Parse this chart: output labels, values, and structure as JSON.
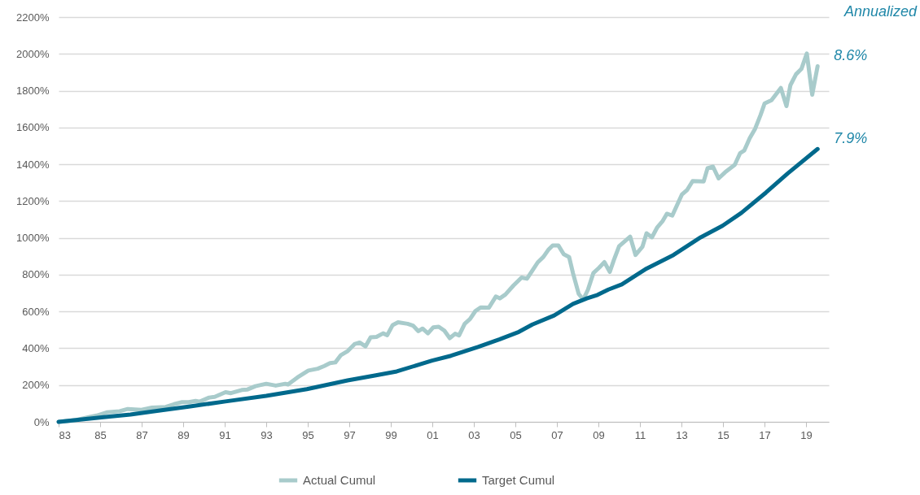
{
  "chart_data": {
    "type": "line",
    "series": [
      {
        "name": "Actual Cumul",
        "color": "#a8cbcb",
        "x": [
          1983.0,
          1983.85,
          1984.5,
          1984.83,
          1985.35,
          1985.94,
          1986.33,
          1986.99,
          1987.5,
          1988.16,
          1988.56,
          1988.95,
          1989.27,
          1989.6,
          1989.8,
          1990.25,
          1990.52,
          1991.04,
          1991.3,
          1991.82,
          1992.1,
          1992.48,
          1993.0,
          1993.46,
          1993.92,
          1994.05,
          1994.5,
          1995.03,
          1995.48,
          1995.8,
          1996.07,
          1996.33,
          1996.6,
          1996.93,
          1997.25,
          1997.5,
          1997.78,
          1998.03,
          1998.31,
          1998.63,
          1998.83,
          1999.09,
          1999.35,
          1999.81,
          2000.07,
          2000.33,
          2000.53,
          2000.79,
          2001.05,
          2001.31,
          2001.58,
          2001.84,
          2002.1,
          2002.29,
          2002.56,
          2002.82,
          2003.08,
          2003.34,
          2003.73,
          2004.06,
          2004.25,
          2004.52,
          2004.91,
          2005.3,
          2005.56,
          2005.82,
          2006.08,
          2006.35,
          2006.61,
          2006.8,
          2007.07,
          2007.33,
          2007.59,
          2007.78,
          2008.05,
          2008.27,
          2008.5,
          2008.76,
          2009.03,
          2009.29,
          2009.55,
          2009.75,
          2010.0,
          2010.53,
          2010.79,
          2011.12,
          2011.32,
          2011.58,
          2011.84,
          2012.1,
          2012.3,
          2012.56,
          2013.02,
          2013.28,
          2013.54,
          2014.07,
          2014.26,
          2014.52,
          2014.79,
          2015.11,
          2015.57,
          2015.83,
          2016.03,
          2016.29,
          2016.55,
          2016.81,
          2017.01,
          2017.34,
          2017.79,
          2018.06,
          2018.25,
          2018.52,
          2018.78,
          2019.04,
          2019.3,
          2019.56
        ],
        "values": [
          0,
          10,
          27,
          34,
          52,
          58,
          70,
          65,
          77,
          81,
          96,
          107,
          107,
          114,
          110,
          132,
          136,
          161,
          156,
          173,
          176,
          194,
          207,
          197,
          207,
          203,
          241,
          279,
          289,
          304,
          319,
          323,
          363,
          385,
          422,
          431,
          410,
          459,
          462,
          481,
          471,
          526,
          541,
          533,
          523,
          493,
          507,
          481,
          514,
          517,
          496,
          455,
          479,
          470,
          533,
          559,
          603,
          622,
          621,
          681,
          671,
          692,
          741,
          784,
          778,
          822,
          867,
          896,
          938,
          959,
          959,
          911,
          896,
          807,
          696,
          665,
          719,
          809,
          837,
          868,
          815,
          881,
          955,
          1007,
          907,
          951,
          1025,
          1003,
          1058,
          1092,
          1131,
          1121,
          1235,
          1261,
          1309,
          1306,
          1379,
          1387,
          1323,
          1357,
          1397,
          1461,
          1475,
          1542,
          1593,
          1667,
          1731,
          1748,
          1815,
          1716,
          1830,
          1889,
          1918,
          2002,
          1778,
          1933
        ]
      },
      {
        "name": "Target Cumul",
        "color": "#00698c",
        "x": [
          1983.0,
          1985.16,
          1986.46,
          1988.03,
          1989.34,
          1991.04,
          1993.0,
          1994.96,
          1996.92,
          1998.23,
          1999.29,
          2000.99,
          2001.9,
          2003.2,
          2004.25,
          2005.17,
          2005.82,
          2006.87,
          2007.78,
          2008.44,
          2008.96,
          2009.48,
          2010.13,
          2011.32,
          2012.62,
          2013.93,
          2014.98,
          2015.89,
          2017.07,
          2018.12,
          2019.56
        ],
        "values": [
          0,
          25,
          40,
          64,
          84,
          111,
          141,
          178,
          225,
          252,
          274,
          333,
          359,
          407,
          449,
          489,
          529,
          578,
          641,
          671,
          690,
          719,
          747,
          833,
          907,
          1003,
          1066,
          1136,
          1246,
          1350,
          1483
        ]
      }
    ],
    "xlim": [
      1983,
      2020.1
    ],
    "xticks": [
      {
        "value": 1983,
        "label": "83"
      },
      {
        "value": 1985,
        "label": "85"
      },
      {
        "value": 1987,
        "label": "87"
      },
      {
        "value": 1989,
        "label": "89"
      },
      {
        "value": 1991,
        "label": "91"
      },
      {
        "value": 1993,
        "label": "93"
      },
      {
        "value": 1995,
        "label": "95"
      },
      {
        "value": 1997,
        "label": "97"
      },
      {
        "value": 1999,
        "label": "99"
      },
      {
        "value": 2001,
        "label": "01"
      },
      {
        "value": 2003,
        "label": "03"
      },
      {
        "value": 2005,
        "label": "05"
      },
      {
        "value": 2007,
        "label": "07"
      },
      {
        "value": 2009,
        "label": "09"
      },
      {
        "value": 2011,
        "label": "11"
      },
      {
        "value": 2013,
        "label": "13"
      },
      {
        "value": 2015,
        "label": "15"
      },
      {
        "value": 2017,
        "label": "17"
      },
      {
        "value": 2019,
        "label": "19"
      }
    ],
    "ylim": [
      0,
      2200
    ],
    "yticks": [
      {
        "value": 0,
        "label": "0%"
      },
      {
        "value": 200,
        "label": "200%"
      },
      {
        "value": 400,
        "label": "400%"
      },
      {
        "value": 600,
        "label": "600%"
      },
      {
        "value": 800,
        "label": "800%"
      },
      {
        "value": 1000,
        "label": "1000%"
      },
      {
        "value": 1200,
        "label": "1200%"
      },
      {
        "value": 1400,
        "label": "1400%"
      },
      {
        "value": 1600,
        "label": "1600%"
      },
      {
        "value": 1800,
        "label": "1800%"
      },
      {
        "value": 2000,
        "label": "2000%"
      },
      {
        "value": 2200,
        "label": "2200%"
      }
    ],
    "grid": "y",
    "legend": "bottom",
    "annotations": [
      "Annualized",
      {
        "text": "8.6%",
        "x": 2019.56,
        "y": 1933
      },
      {
        "text": "7.9%",
        "x": 2019.56,
        "y": 1483
      }
    ]
  }
}
